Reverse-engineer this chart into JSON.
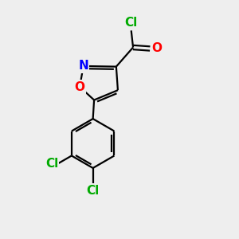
{
  "bg_color": "#eeeeee",
  "bond_color": "#000000",
  "bond_width": 1.6,
  "atom_colors": {
    "Cl": "#00aa00",
    "O_carbonyl": "#ff0000",
    "N": "#0000ff",
    "O_ring": "#ff0000"
  },
  "font_size": 11
}
